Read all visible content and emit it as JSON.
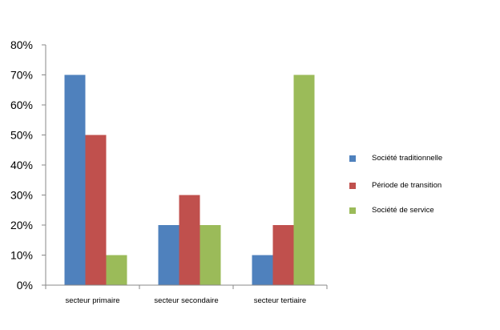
{
  "chart_data": {
    "type": "bar",
    "categories": [
      "secteur primaire",
      "secteur secondaire",
      "secteur tertiaire"
    ],
    "series": [
      {
        "name": "Société traditionnelle",
        "values": [
          70,
          20,
          10
        ],
        "color": "#4f81bd"
      },
      {
        "name": "Période de transition",
        "values": [
          50,
          30,
          20
        ],
        "color": "#c0504d"
      },
      {
        "name": "Société de service",
        "values": [
          10,
          20,
          70
        ],
        "color": "#9bbb59"
      }
    ],
    "y_ticks": [
      "0%",
      "10%",
      "20%",
      "30%",
      "40%",
      "50%",
      "60%",
      "70%",
      "80%"
    ],
    "ylim": [
      0,
      80
    ],
    "y_unit": "%",
    "grid": false,
    "legend_position": "right"
  }
}
